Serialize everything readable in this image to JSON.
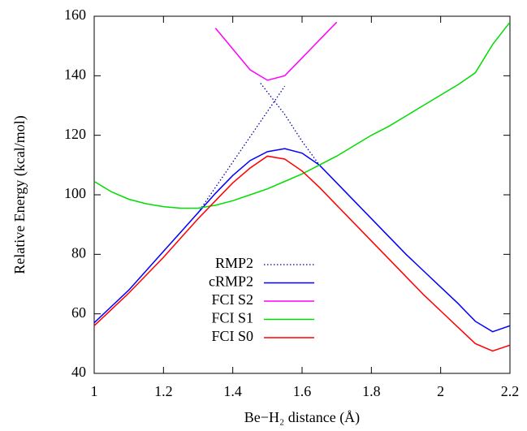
{
  "chart_data": {
    "type": "line",
    "xlabel": "Be−H₂ distance (Å)",
    "ylabel": "Relative Energy (kcal/mol)",
    "x": [
      1.0,
      1.05,
      1.1,
      1.15,
      1.2,
      1.25,
      1.3,
      1.35,
      1.4,
      1.45,
      1.5,
      1.55,
      1.6,
      1.65,
      1.7,
      1.75,
      1.8,
      1.85,
      1.9,
      1.95,
      2.0,
      2.05,
      2.1,
      2.15,
      2.2
    ],
    "series": [
      {
        "name": "RMP2",
        "color": "#0000a0",
        "dashed": true,
        "x": [
          1.3,
          1.4,
          1.5,
          1.55,
          1.55,
          1.48,
          1.55,
          1.6,
          1.65
        ],
        "values": [
          94,
          111,
          128,
          136.5,
          null,
          137.5,
          127,
          118,
          110
        ]
      },
      {
        "name": "cRMP2",
        "color": "#0000ff",
        "values": [
          57,
          62.5,
          68,
          74.5,
          81,
          87.5,
          94,
          100.5,
          106.5,
          111.5,
          114.5,
          115.5,
          114,
          110,
          104,
          98,
          92,
          86,
          80,
          74.5,
          69,
          63.5,
          57.5,
          54,
          56
        ]
      },
      {
        "name": "FCI S2",
        "color": "#ff00ff",
        "values": [
          null,
          null,
          null,
          null,
          null,
          null,
          null,
          156,
          149,
          142,
          138.5,
          140,
          146,
          152,
          158,
          null,
          null,
          null,
          null,
          null,
          null,
          null,
          null,
          null,
          null
        ]
      },
      {
        "name": "FCI S1",
        "color": "#00dd00",
        "values": [
          104.5,
          101,
          98.5,
          97,
          96,
          95.5,
          95.5,
          96.5,
          98,
          100,
          102,
          104.5,
          107,
          110,
          113,
          116.5,
          120,
          123,
          126.5,
          130,
          133.5,
          137,
          141,
          150.5,
          158
        ]
      },
      {
        "name": "FCI S0",
        "color": "#ff0000",
        "values": [
          56,
          61.5,
          67,
          73,
          79,
          85.5,
          92,
          98,
          104,
          109,
          113,
          112,
          108,
          102.5,
          96.5,
          90.5,
          84.5,
          78.5,
          72.5,
          66.5,
          61,
          55.5,
          50,
          47.5,
          49.5
        ]
      }
    ],
    "xlim": [
      1,
      2.2
    ],
    "xticks": [
      1,
      1.2,
      1.4,
      1.6,
      1.8,
      2,
      2.2
    ],
    "ylim": [
      40,
      160
    ],
    "yticks": [
      40,
      60,
      80,
      100,
      120,
      140,
      160
    ],
    "legend": "bottom center",
    "grid": false
  }
}
